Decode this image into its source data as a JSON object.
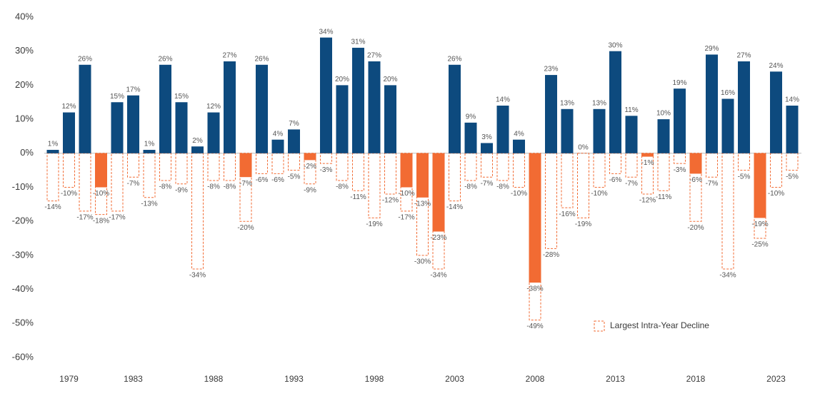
{
  "chart_data": {
    "type": "bar",
    "categories": [
      null,
      "1979",
      null,
      null,
      null,
      "1983",
      null,
      null,
      null,
      null,
      "1988",
      null,
      null,
      null,
      null,
      "1993",
      null,
      null,
      null,
      null,
      "1998",
      null,
      null,
      null,
      null,
      "2003",
      null,
      null,
      null,
      null,
      "2008",
      null,
      null,
      null,
      null,
      "2013",
      null,
      null,
      null,
      null,
      "2018",
      null,
      null,
      null,
      null,
      "2023",
      null
    ],
    "series": [
      {
        "color": "#0d4a7e",
        "negative_color": "#f26b33",
        "values": [
          1,
          12,
          26,
          -10,
          15,
          17,
          1,
          26,
          15,
          2,
          12,
          27,
          -7,
          26,
          4,
          7,
          -2,
          34,
          20,
          31,
          27,
          20,
          -10,
          -13,
          -23,
          26,
          9,
          3,
          14,
          4,
          -38,
          23,
          13,
          0,
          13,
          30,
          11,
          -1,
          10,
          19,
          -6,
          29,
          16,
          27,
          -19,
          24,
          14
        ],
        "value_labels": [
          "1%",
          "12%",
          "26%",
          "-10%",
          "15%",
          "17%",
          "1%",
          "26%",
          "15%",
          "2%",
          "12%",
          "27%",
          "-7%",
          "26%",
          "4%",
          "7%",
          "-2%",
          "34%",
          "20%",
          "31%",
          "27%",
          "20%",
          "-10%",
          "-13%",
          "-23%",
          "26%",
          "9%",
          "3%",
          "14%",
          "4%",
          "-38%",
          "23%",
          "13%",
          "0%",
          "13%",
          "30%",
          "11%",
          "-1%",
          "10%",
          "19%",
          "-6%",
          "29%",
          "16%",
          "27%",
          "-19%",
          "24%",
          "14%"
        ]
      },
      {
        "name": "Largest Intra-Year Decline",
        "color": "#f26b33",
        "dashed": true,
        "values": [
          -14,
          -10,
          -17,
          -18,
          -17,
          -7,
          -13,
          -8,
          -9,
          -34,
          -8,
          -8,
          -20,
          -6,
          -6,
          -5,
          -9,
          -3,
          -8,
          -11,
          -19,
          -12,
          -17,
          -30,
          -34,
          -14,
          -8,
          -7,
          -8,
          -10,
          -49,
          -28,
          -16,
          -19,
          -10,
          -6,
          -7,
          -12,
          -11,
          -3,
          -20,
          -7,
          -34,
          -5,
          -25,
          -10,
          -5
        ],
        "value_labels": [
          "-14%",
          "-10%",
          "-17%",
          "-18%",
          "-17%",
          "-7%",
          "-13%",
          "-8%",
          "-9%",
          "-34%",
          "-8%",
          "-8%",
          "-20%",
          "-6%",
          "-6%",
          "-5%",
          "-9%",
          "-3%",
          "-8%",
          "-11%",
          "-19%",
          "-12%",
          "-17%",
          "-30%",
          "-34%",
          "-14%",
          "-8%",
          "-7%",
          "-8%",
          "-10%",
          "-49%",
          "-28%",
          "-16%",
          "-19%",
          "-10%",
          "-6%",
          "-7%",
          "-12%",
          "-11%",
          "-3%",
          "-20%",
          "-7%",
          "-34%",
          "-5%",
          "-25%",
          "-10%",
          "-5%"
        ]
      }
    ],
    "ylim": [
      -60,
      40
    ],
    "yticks": [
      {
        "value": -60,
        "label": "-60%"
      },
      {
        "value": -50,
        "label": "-50%"
      },
      {
        "value": -40,
        "label": "-40%"
      },
      {
        "value": -30,
        "label": "-30%"
      },
      {
        "value": -20,
        "label": "-20%"
      },
      {
        "value": -10,
        "label": "-10%"
      },
      {
        "value": 0,
        "label": "0%"
      },
      {
        "value": 10,
        "label": "10%"
      },
      {
        "value": 20,
        "label": "20%"
      },
      {
        "value": 30,
        "label": "30%"
      },
      {
        "value": 40,
        "label": "40%"
      }
    ],
    "legend_position": "lower right"
  }
}
